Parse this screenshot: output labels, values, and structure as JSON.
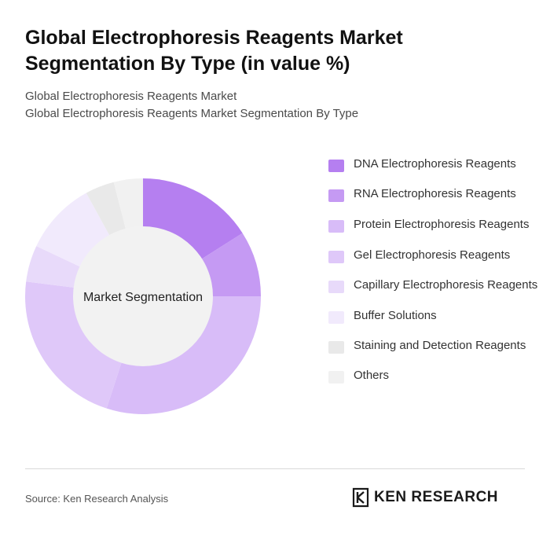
{
  "header": {
    "title": "Global Electrophoresis Reagents Market Segmentation By Type (in value %)",
    "subtitle_line1": "Global Electrophoresis Reagents Market",
    "subtitle_line2": "Global Electrophoresis Reagents Market Segmentation By Type"
  },
  "chart_data": {
    "type": "pie",
    "variant": "donut",
    "center_label": "Market Segmentation",
    "legend_position": "right",
    "series": [
      {
        "name": "DNA Electrophoresis Reagents",
        "value": 16,
        "color": "#b57ff0"
      },
      {
        "name": "RNA Electrophoresis Reagents",
        "value": 9,
        "color": "#c59af3"
      },
      {
        "name": "Protein Electrophoresis Reagents",
        "value": 30,
        "color": "#d8bcf8"
      },
      {
        "name": "Gel Electrophoresis Reagents",
        "value": 22,
        "color": "#dfc8f9"
      },
      {
        "name": "Capillary Electrophoresis Reagents",
        "value": 5,
        "color": "#e8dafa"
      },
      {
        "name": "Buffer Solutions",
        "value": 10,
        "color": "#f1eafc"
      },
      {
        "name": "Staining and Detection Reagents",
        "value": 4,
        "color": "#e9e9e9"
      },
      {
        "name": "Others",
        "value": 4,
        "color": "#f1f1f1"
      }
    ]
  },
  "footer": {
    "source": "Source: Ken Research Analysis",
    "brand": "KEN RESEARCH"
  }
}
